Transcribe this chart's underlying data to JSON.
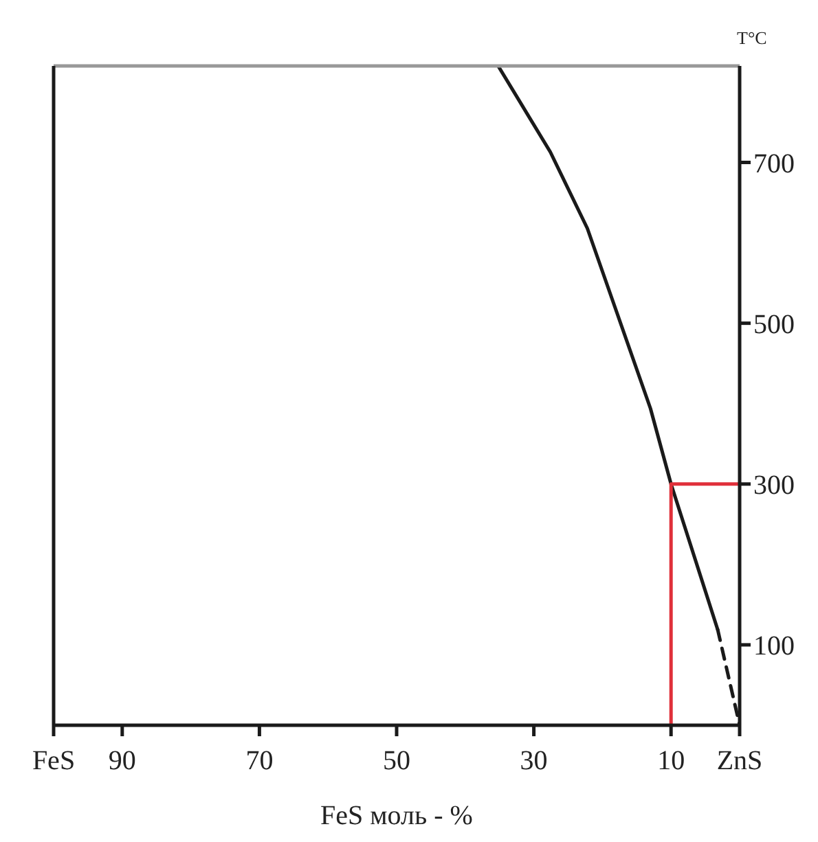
{
  "chart_data": {
    "type": "line",
    "xlabel": "FeS моль - %",
    "ylabel": "T°C",
    "xlim": [
      100,
      0
    ],
    "xticks": [
      {
        "value": 100,
        "label": "FeS"
      },
      90,
      70,
      50,
      30,
      10,
      {
        "value": 0,
        "label": "ZnS"
      }
    ],
    "ylim": [
      0,
      820
    ],
    "yticks": [
      100,
      300,
      500,
      700
    ],
    "marker": "none",
    "series": [
      {
        "color": "#1a1a1a",
        "line_style": "solid",
        "x": [
          35.2,
          27.6,
          22.2,
          13,
          10,
          3.2
        ],
        "values": [
          820,
          713,
          618,
          394,
          300,
          119
        ]
      },
      {
        "color": "#1a1a1a",
        "line_style": "dashed",
        "x": [
          3.2,
          0
        ],
        "values": [
          119,
          0
        ]
      },
      {
        "color": "#e0303a",
        "line_style": "solid",
        "x": [
          10,
          10,
          0
        ],
        "values": [
          0,
          300,
          300
        ]
      }
    ]
  }
}
